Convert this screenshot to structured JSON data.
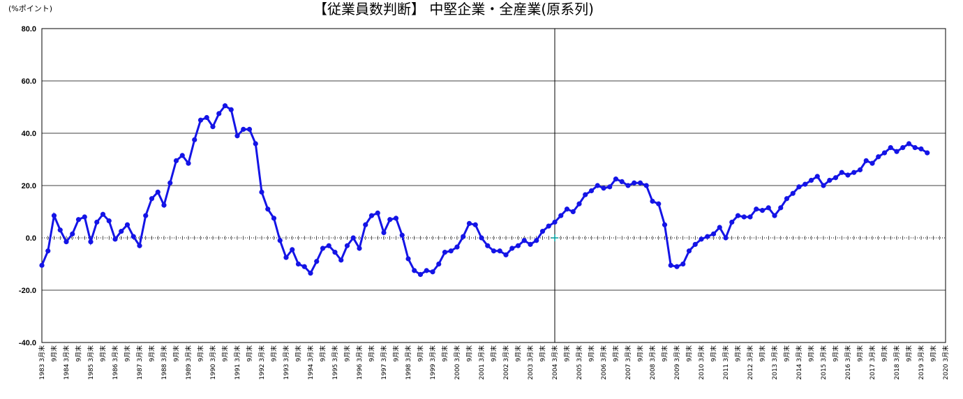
{
  "chart_data": {
    "type": "line",
    "title": "【従業員数判断】 中堅企業・全産業(原系列)",
    "y_unit": "(%ポイント)",
    "categories": [
      "1983 3月末",
      null,
      "9月末",
      null,
      "1984 3月末",
      null,
      "9月末",
      null,
      "1985 3月末",
      null,
      "9月末",
      null,
      "1986 3月末",
      null,
      "9月末",
      null,
      "1987 3月末",
      null,
      "9月末",
      null,
      "1988 3月末",
      null,
      "9月末",
      null,
      "1989 3月末",
      null,
      "9月末",
      null,
      "1990 3月末",
      null,
      "9月末",
      null,
      "1991 3月末",
      null,
      "9月末",
      null,
      "1992 3月末",
      null,
      "9月末",
      null,
      "1993 3月末",
      null,
      "9月末",
      null,
      "1994 3月末",
      null,
      "9月末",
      null,
      "1995 3月末",
      null,
      "9月末",
      null,
      "1996 3月末",
      null,
      "9月末",
      null,
      "1997 3月末",
      null,
      "9月末",
      null,
      "1998 3月末",
      null,
      "9月末",
      null,
      "1999 3月末",
      null,
      "9月末",
      null,
      "2000 3月末",
      null,
      "9月末",
      null,
      "2001 3月末",
      null,
      "9月末",
      null,
      "2002 3月末",
      null,
      "9月末",
      null,
      "2003 3月末",
      null,
      "9月末",
      null,
      "2004 3月末",
      null,
      "9月末",
      null,
      "2005 3月末",
      null,
      "9月末",
      null,
      "2006 3月末",
      null,
      "9月末",
      null,
      "2007 3月末",
      null,
      "9月末",
      null,
      "2008 3月末",
      null,
      "9月末",
      null,
      "2009 3月末",
      null,
      "9月末",
      null,
      "2010 3月末",
      null,
      "9月末",
      null,
      "2011 3月末",
      null,
      "9月末",
      null,
      "2012 3月末",
      null,
      "9月末",
      null,
      "2013 3月末",
      null,
      "9月末",
      null,
      "2014 3月末",
      null,
      "9月末",
      null,
      "2015 3月末",
      null,
      "9月末",
      null,
      "2016 3月末",
      null,
      "9月末",
      null,
      "2017 3月末",
      null,
      "9月末",
      null,
      "2018 3月末",
      null,
      "9月末",
      null,
      "2019 3月末",
      null,
      "9月末",
      null,
      "2020 3月末"
    ],
    "series": [
      {
        "color": "#1414e6",
        "values": [
          -10.5,
          -5,
          8.5,
          3,
          -1.5,
          1.5,
          7,
          8,
          -1.5,
          6,
          9,
          6.5,
          -0.5,
          2.5,
          5,
          0.5,
          -3,
          8.5,
          15,
          17.5,
          12.5,
          21,
          29.5,
          31.5,
          28.5,
          37.5,
          45,
          46,
          42.5,
          47.5,
          50.5,
          49,
          39,
          41.5,
          41.5,
          36,
          17.5,
          11,
          7.5,
          -1,
          -7.5,
          -4.5,
          -10,
          -11,
          -13.5,
          -9,
          -4,
          -3,
          -5.5,
          -8.5,
          -3,
          0,
          -4,
          5,
          8.5,
          9.5,
          2,
          7,
          7.5,
          1,
          -8,
          -12.5,
          -14,
          -12.5,
          -13,
          -10,
          -5.5,
          -5,
          -3.5,
          0.5,
          5.5,
          5,
          0,
          -3,
          -5,
          -5,
          -6.5,
          -4,
          -3,
          -1,
          -2.5,
          -1,
          2.5,
          4.5,
          6,
          8.5,
          11,
          10,
          13,
          16.5,
          18,
          20,
          19,
          19.5,
          22.5,
          21.5,
          20,
          21,
          21,
          20,
          14,
          13,
          5,
          -10.5,
          -11,
          -10,
          -5,
          -2.5,
          -0.5,
          0.5,
          1.5,
          4,
          0,
          6,
          8.5,
          8,
          8,
          11,
          10.5,
          11.5,
          8.5,
          11.5,
          15,
          17,
          19.5,
          20.5,
          22,
          23.5,
          20,
          22,
          23,
          25,
          24,
          25,
          26,
          29.5,
          28.5,
          31,
          32.5,
          34.5,
          33,
          34.5,
          36,
          34.5,
          34,
          32.5,
          null,
          null,
          null
        ]
      }
    ],
    "ylim": [
      -40,
      80
    ],
    "yticks": [
      {
        "value": -40,
        "label": "-40.0"
      },
      {
        "value": -20,
        "label": "-20.0"
      },
      {
        "value": 0,
        "label": "0.0"
      },
      {
        "value": 20,
        "label": "20.0"
      },
      {
        "value": 40,
        "label": "40.0"
      },
      {
        "value": 60,
        "label": "60.0"
      },
      {
        "value": 80,
        "label": "80.0"
      }
    ],
    "grid": true,
    "vline_at": "2004 3月末",
    "marker_color": "#00a0a0"
  }
}
